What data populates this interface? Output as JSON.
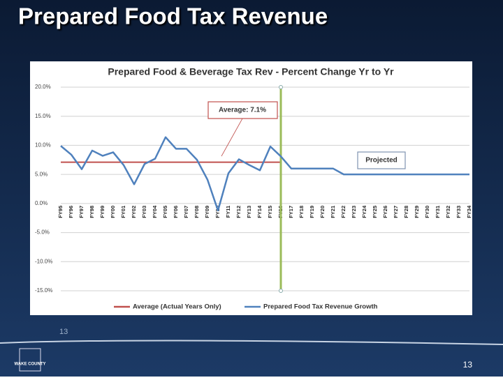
{
  "header": {
    "title": "Prepared Food Tax Revenue"
  },
  "chart_data": {
    "type": "line",
    "title": "Prepared Food & Beverage Tax Rev - Percent Change Yr to Yr",
    "categories": [
      "FY95",
      "FY96",
      "FY97",
      "FY98",
      "FY99",
      "FY00",
      "FY01",
      "FY02",
      "FY03",
      "FY04",
      "FY05",
      "FY06",
      "FY07",
      "FY08",
      "FY09",
      "FY10",
      "FY11",
      "FY12",
      "FY13",
      "FY14",
      "FY15",
      "FY16",
      "FY17",
      "FY18",
      "FY19",
      "FY20",
      "FY21",
      "FY22",
      "FY23",
      "FY24",
      "FY25",
      "FY26",
      "FY27",
      "FY28",
      "FY29",
      "FY30",
      "FY31",
      "FY32",
      "FY33",
      "FY34"
    ],
    "series": [
      {
        "name": "Prepared Food Tax Revenue Growth",
        "color": "#4f81bd",
        "values": [
          9.9,
          8.4,
          5.9,
          9.1,
          8.2,
          8.8,
          6.6,
          3.3,
          6.8,
          7.7,
          11.4,
          9.4,
          9.4,
          7.5,
          4.1,
          -1.2,
          5.2,
          7.6,
          6.6,
          5.7,
          9.8,
          8.1,
          6.0,
          6.0,
          6.0,
          6.0,
          6.0,
          5.0,
          5.0,
          5.0,
          5.0,
          5.0,
          5.0,
          5.0,
          5.0,
          5.0,
          5.0,
          5.0,
          5.0,
          5.0
        ]
      }
    ],
    "average": {
      "name": "Average (Actual Years Only)",
      "color": "#c0504d",
      "value": 7.1,
      "until": "FY16"
    },
    "divider": {
      "category": "FY16",
      "color": "#9bbb59"
    },
    "annotations": [
      "Average: 7.1%",
      "Projected"
    ],
    "ylim": [
      -15,
      20
    ],
    "yticks": [
      {
        "value": 20,
        "label": "20.0%"
      },
      {
        "value": 15,
        "label": "15.0%"
      },
      {
        "value": 10,
        "label": "10.0%"
      },
      {
        "value": 5,
        "label": "5.0%"
      },
      {
        "value": 0,
        "label": "0.0%"
      },
      {
        "value": -5,
        "label": "-5.0%"
      },
      {
        "value": -10,
        "label": "-10.0%"
      },
      {
        "value": -15,
        "label": "-15.0%"
      }
    ],
    "grid": true,
    "legend": "bottom"
  },
  "footer": {
    "page_label": "13",
    "page_number": "13",
    "logo": "WAKE COUNTY"
  }
}
